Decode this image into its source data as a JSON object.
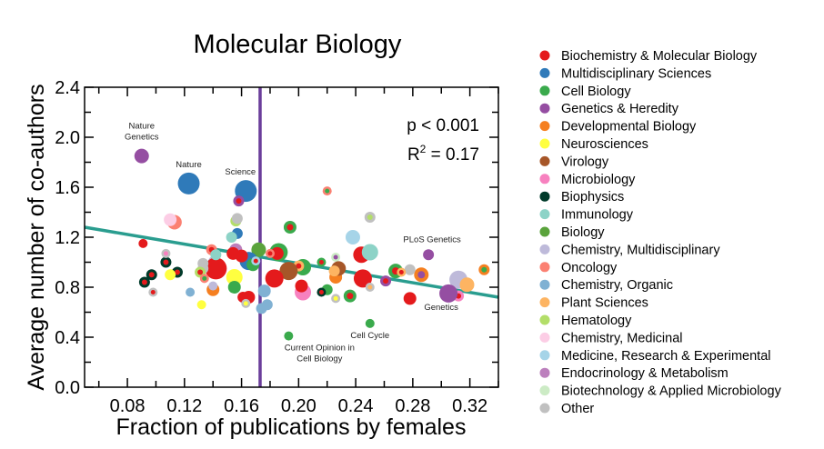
{
  "chart_data": {
    "type": "scatter",
    "title": "Molecular Biology",
    "xlabel": "Fraction of publications by females",
    "ylabel": "Average number of co-authors",
    "xlim": [
      0.05,
      0.34
    ],
    "ylim": [
      0.0,
      2.4
    ],
    "xticks": [
      "0.08",
      "0.12",
      "0.16",
      "0.20",
      "0.24",
      "0.28",
      "0.32"
    ],
    "xtick_values": [
      0.08,
      0.12,
      0.16,
      0.2,
      0.24,
      0.28,
      0.32
    ],
    "yticks": [
      "0.0",
      "0.4",
      "0.8",
      "1.2",
      "1.6",
      "2.0",
      "2.4"
    ],
    "ytick_values": [
      0.0,
      0.4,
      0.8,
      1.2,
      1.6,
      2.0,
      2.4
    ],
    "grid": false,
    "legend_placement": "right-outside",
    "stats": {
      "p": "p < 0.001",
      "r2_label": "R",
      "r2_sup": "2",
      "r2_value": " = 0.17"
    },
    "trendline": {
      "x": [
        0.05,
        0.34
      ],
      "y": [
        1.28,
        0.72
      ],
      "color": "#2a9d8f"
    },
    "vertical_line": {
      "x": 0.173,
      "color": "#6a3d9a"
    },
    "categories": [
      {
        "name": "Biochemistry & Molecular Biology",
        "color": "#e41a1c"
      },
      {
        "name": "Multidisciplinary Sciences",
        "color": "#2f7ab9"
      },
      {
        "name": "Cell Biology",
        "color": "#3aaa4c"
      },
      {
        "name": "Genetics & Heredity",
        "color": "#954ea2"
      },
      {
        "name": "Developmental Biology",
        "color": "#f57f20"
      },
      {
        "name": "Neurosciences",
        "color": "#ffff40"
      },
      {
        "name": "Virology",
        "color": "#a65628"
      },
      {
        "name": "Microbiology",
        "color": "#f781bf"
      },
      {
        "name": "Biophysics",
        "color": "#003a2a"
      },
      {
        "name": "Immunology",
        "color": "#8dd3c7"
      },
      {
        "name": "Biology",
        "color": "#5aa33c"
      },
      {
        "name": "Chemistry, Multidisciplinary",
        "color": "#bebada"
      },
      {
        "name": "Oncology",
        "color": "#fb8072"
      },
      {
        "name": "Chemistry, Organic",
        "color": "#80b1d3"
      },
      {
        "name": "Plant Sciences",
        "color": "#fdb462"
      },
      {
        "name": "Hematology",
        "color": "#b3de69"
      },
      {
        "name": "Chemistry, Medicinal",
        "color": "#fccde5"
      },
      {
        "name": "Medicine, Research & Experimental",
        "color": "#a6d4e8"
      },
      {
        "name": "Endocrinology & Metabolism",
        "color": "#bc80bd"
      },
      {
        "name": "Biotechnology & Applied Microbiology",
        "color": "#ccebc5"
      },
      {
        "name": "Other",
        "color": "#c0c0c0"
      }
    ],
    "points": [
      {
        "x": 0.09,
        "y": 1.85,
        "c": 3,
        "s": 8,
        "label": "Nature Genetics"
      },
      {
        "x": 0.123,
        "y": 1.63,
        "c": 1,
        "s": 12,
        "label": "Nature"
      },
      {
        "x": 0.163,
        "y": 1.57,
        "c": 1,
        "s": 12,
        "label": "Science"
      },
      {
        "x": 0.158,
        "y": 1.49,
        "c": 3,
        "i": 0,
        "s": 6
      },
      {
        "x": 0.091,
        "y": 1.15,
        "c": 0,
        "s": 5
      },
      {
        "x": 0.113,
        "y": 1.32,
        "c": 12,
        "s": 8
      },
      {
        "x": 0.11,
        "y": 1.34,
        "c": 16,
        "s": 7
      },
      {
        "x": 0.156,
        "y": 1.33,
        "c": 15,
        "s": 6
      },
      {
        "x": 0.157,
        "y": 1.35,
        "c": 20,
        "s": 6
      },
      {
        "x": 0.157,
        "y": 1.23,
        "c": 1,
        "s": 6
      },
      {
        "x": 0.153,
        "y": 1.2,
        "c": 9,
        "s": 6
      },
      {
        "x": 0.22,
        "y": 1.57,
        "c": 12,
        "i": 2,
        "s": 5
      },
      {
        "x": 0.194,
        "y": 1.28,
        "c": 2,
        "i": 0,
        "s": 7
      },
      {
        "x": 0.25,
        "y": 1.36,
        "c": 20,
        "i": 15,
        "s": 6
      },
      {
        "x": 0.238,
        "y": 1.2,
        "c": 17,
        "s": 8
      },
      {
        "x": 0.244,
        "y": 1.06,
        "c": 0,
        "s": 9
      },
      {
        "x": 0.25,
        "y": 1.08,
        "c": 9,
        "s": 9
      },
      {
        "x": 0.291,
        "y": 1.06,
        "c": 3,
        "s": 6,
        "label": "PLoS Genetics"
      },
      {
        "x": 0.312,
        "y": 0.86,
        "c": 11,
        "s": 10
      },
      {
        "x": 0.318,
        "y": 0.82,
        "c": 14,
        "s": 8
      },
      {
        "x": 0.312,
        "y": 0.73,
        "c": 7,
        "i": 0,
        "s": 6
      },
      {
        "x": 0.305,
        "y": 0.75,
        "c": 3,
        "s": 10,
        "label": "Genetics"
      },
      {
        "x": 0.33,
        "y": 0.94,
        "c": 4,
        "i": 2,
        "s": 6
      },
      {
        "x": 0.286,
        "y": 0.9,
        "c": 4,
        "i": 3,
        "s": 8
      },
      {
        "x": 0.278,
        "y": 0.71,
        "c": 0,
        "s": 7
      },
      {
        "x": 0.278,
        "y": 0.94,
        "c": 20,
        "s": 6
      },
      {
        "x": 0.268,
        "y": 0.93,
        "c": 2,
        "i": 0,
        "s": 8
      },
      {
        "x": 0.272,
        "y": 0.92,
        "c": 14,
        "i": 0,
        "s": 5
      },
      {
        "x": 0.261,
        "y": 0.85,
        "c": 3,
        "i": 0,
        "s": 6
      },
      {
        "x": 0.245,
        "y": 0.87,
        "c": 0,
        "s": 10
      },
      {
        "x": 0.25,
        "y": 0.8,
        "c": 20,
        "i": 14,
        "s": 5
      },
      {
        "x": 0.236,
        "y": 0.73,
        "c": 2,
        "i": 0,
        "s": 7
      },
      {
        "x": 0.226,
        "y": 0.71,
        "c": 20,
        "i": 5,
        "s": 5
      },
      {
        "x": 0.22,
        "y": 0.78,
        "c": 2,
        "s": 6
      },
      {
        "x": 0.216,
        "y": 0.76,
        "c": 8,
        "i": 0,
        "s": 5
      },
      {
        "x": 0.216,
        "y": 1.0,
        "c": 2,
        "i": 0,
        "s": 5
      },
      {
        "x": 0.226,
        "y": 1.04,
        "c": 19,
        "i": 3,
        "s": 5
      },
      {
        "x": 0.226,
        "y": 0.88,
        "c": 4,
        "s": 7
      },
      {
        "x": 0.228,
        "y": 0.95,
        "c": 6,
        "s": 8
      },
      {
        "x": 0.225,
        "y": 0.93,
        "c": 14,
        "s": 6
      },
      {
        "x": 0.203,
        "y": 0.96,
        "c": 2,
        "s": 9
      },
      {
        "x": 0.2,
        "y": 0.97,
        "c": 14,
        "i": 0,
        "s": 6
      },
      {
        "x": 0.203,
        "y": 0.76,
        "c": 7,
        "s": 9
      },
      {
        "x": 0.202,
        "y": 0.81,
        "c": 0,
        "s": 7
      },
      {
        "x": 0.193,
        "y": 0.93,
        "c": 6,
        "s": 10
      },
      {
        "x": 0.183,
        "y": 0.87,
        "c": 0,
        "s": 10
      },
      {
        "x": 0.186,
        "y": 1.08,
        "c": 2,
        "s": 10
      },
      {
        "x": 0.185,
        "y": 1.07,
        "c": 0,
        "s": 7
      },
      {
        "x": 0.18,
        "y": 1.07,
        "c": 12,
        "i": 0,
        "s": 5
      },
      {
        "x": 0.176,
        "y": 0.77,
        "c": 13,
        "s": 7
      },
      {
        "x": 0.178,
        "y": 0.66,
        "c": 13,
        "s": 6
      },
      {
        "x": 0.174,
        "y": 0.63,
        "c": 13,
        "s": 6
      },
      {
        "x": 0.172,
        "y": 1.1,
        "c": 10,
        "s": 8
      },
      {
        "x": 0.165,
        "y": 1.01,
        "c": 1,
        "s": 10
      },
      {
        "x": 0.168,
        "y": 0.98,
        "c": 2,
        "s": 7
      },
      {
        "x": 0.17,
        "y": 1.01,
        "c": 17,
        "i": 0,
        "s": 5
      },
      {
        "x": 0.156,
        "y": 1.1,
        "c": 18,
        "s": 7
      },
      {
        "x": 0.154,
        "y": 1.07,
        "c": 0,
        "s": 7
      },
      {
        "x": 0.16,
        "y": 1.05,
        "c": 0,
        "s": 7
      },
      {
        "x": 0.155,
        "y": 0.88,
        "c": 5,
        "s": 9
      },
      {
        "x": 0.155,
        "y": 0.8,
        "c": 2,
        "s": 7
      },
      {
        "x": 0.165,
        "y": 0.72,
        "c": 0,
        "s": 7
      },
      {
        "x": 0.161,
        "y": 0.72,
        "c": 0,
        "s": 6
      },
      {
        "x": 0.163,
        "y": 0.67,
        "c": 20,
        "i": 5,
        "s": 5
      },
      {
        "x": 0.141,
        "y": 1.0,
        "c": 11,
        "s": 7
      },
      {
        "x": 0.142,
        "y": 0.95,
        "c": 0,
        "s": 12
      },
      {
        "x": 0.139,
        "y": 1.1,
        "c": 12,
        "i": 0,
        "s": 6
      },
      {
        "x": 0.142,
        "y": 1.06,
        "c": 9,
        "s": 6
      },
      {
        "x": 0.14,
        "y": 0.78,
        "c": 4,
        "s": 7
      },
      {
        "x": 0.14,
        "y": 0.81,
        "c": 11,
        "s": 5
      },
      {
        "x": 0.133,
        "y": 0.99,
        "c": 20,
        "s": 6
      },
      {
        "x": 0.133,
        "y": 0.95,
        "c": 20,
        "s": 6
      },
      {
        "x": 0.131,
        "y": 0.92,
        "c": 15,
        "i": 0,
        "s": 6
      },
      {
        "x": 0.134,
        "y": 0.87,
        "c": 12,
        "i": 2,
        "s": 5
      },
      {
        "x": 0.132,
        "y": 0.66,
        "c": 5,
        "s": 5
      },
      {
        "x": 0.124,
        "y": 0.76,
        "c": 13,
        "s": 5
      },
      {
        "x": 0.115,
        "y": 0.92,
        "c": 8,
        "i": 0,
        "s": 6
      },
      {
        "x": 0.11,
        "y": 0.9,
        "c": 5,
        "s": 6
      },
      {
        "x": 0.107,
        "y": 1.0,
        "c": 8,
        "i": 0,
        "s": 6
      },
      {
        "x": 0.107,
        "y": 1.07,
        "c": 20,
        "i": 7,
        "s": 5
      },
      {
        "x": 0.097,
        "y": 0.9,
        "c": 8,
        "i": 0,
        "s": 6
      },
      {
        "x": 0.092,
        "y": 0.84,
        "c": 8,
        "i": 0,
        "s": 6
      },
      {
        "x": 0.098,
        "y": 0.76,
        "c": 20,
        "i": 0,
        "s": 5
      },
      {
        "x": 0.193,
        "y": 0.41,
        "c": 2,
        "s": 5,
        "label": "Current Opinion in Cell Biology"
      },
      {
        "x": 0.25,
        "y": 0.51,
        "c": 2,
        "s": 5,
        "label": "Cell Cycle"
      }
    ]
  }
}
